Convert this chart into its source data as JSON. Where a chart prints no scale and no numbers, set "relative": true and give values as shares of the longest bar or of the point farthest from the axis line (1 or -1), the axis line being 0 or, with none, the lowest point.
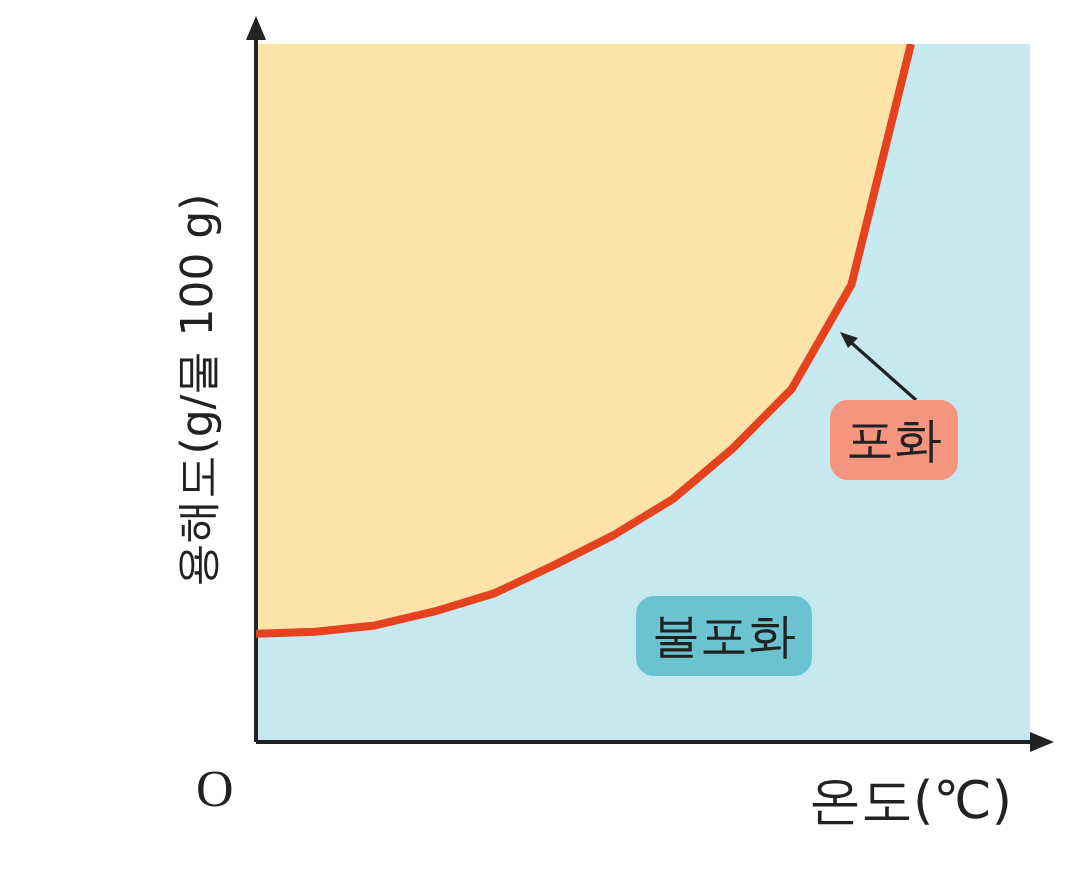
{
  "chart_data": {
    "type": "line",
    "relative": true,
    "ylabel": "용해도(g/물 100 g)",
    "xlabel": "온도(℃)",
    "categories": [
      null,
      null,
      null,
      null,
      null,
      null,
      null,
      null,
      null,
      null,
      null,
      null,
      null,
      null
    ],
    "series": [
      {
        "color": "#e5421f",
        "values": [
          0.155,
          0.158,
          0.167,
          0.187,
          0.213,
          0.253,
          0.296,
          0.348,
          0.42,
          0.506,
          0.655,
          1,
          null,
          null
        ]
      }
    ],
    "annotations": [
      "O",
      "포화",
      "불포화"
    ],
    "legend": false,
    "marker": "none",
    "line_style": "solid"
  }
}
